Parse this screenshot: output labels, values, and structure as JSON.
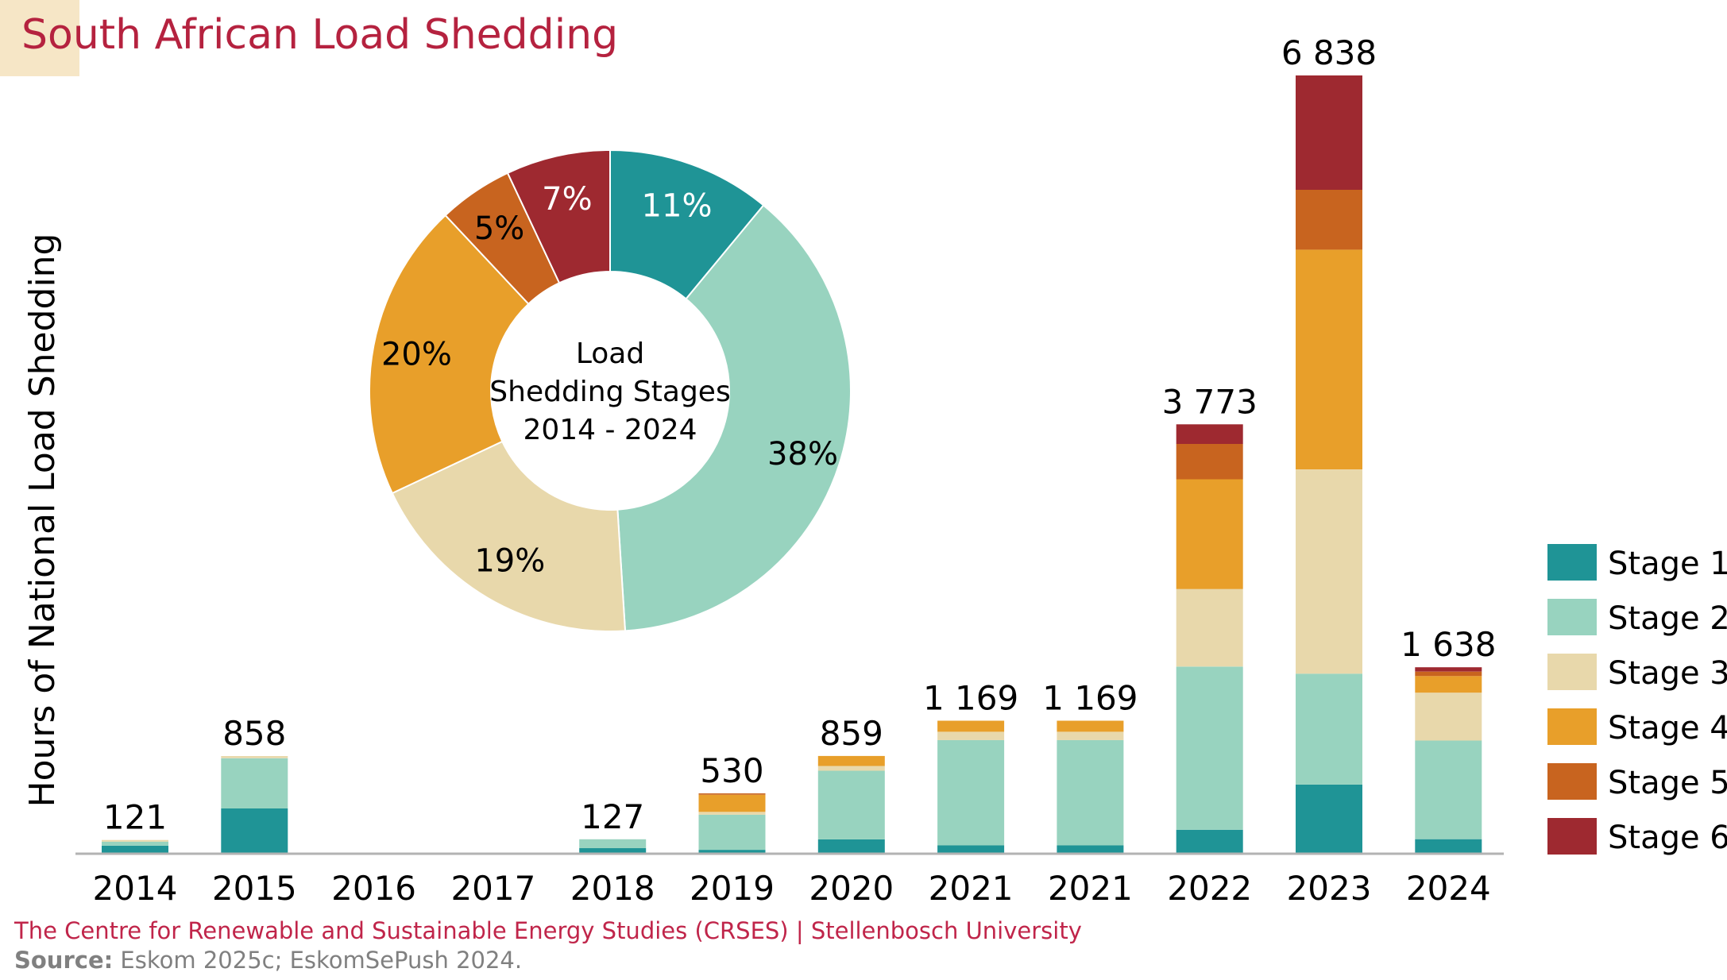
{
  "title": "South African Load Shedding",
  "footer": {
    "credit": "The Centre for Renewable and Sustainable Energy Studies (CRSES)  |  Stellenbosch University",
    "source_label": "Source:",
    "source_text": " Eskom 2025c; EskomSePush 2024."
  },
  "colors": {
    "title": "#b5223f",
    "credit": "#c0254a",
    "source": "#808080",
    "Stage 1": "#1f9496",
    "Stage 2": "#98d3bf",
    "Stage 3": "#e8d8ab",
    "Stage 4": "#e89f2a",
    "Stage 5": "#c8641f",
    "Stage 6": "#9e2930"
  },
  "chart_data": [
    {
      "type": "bar",
      "stacked": true,
      "ylabel": "Hours of National Load Shedding",
      "ylim": [
        0,
        6838
      ],
      "categories": [
        "2014",
        "2015",
        "2016",
        "2017",
        "2018",
        "2019",
        "2020",
        "2021",
        "2021",
        "2022",
        "2023",
        "2024"
      ],
      "totals": [
        121,
        858,
        0,
        0,
        127,
        530,
        859,
        1169,
        1169,
        3773,
        6838,
        1638
      ],
      "total_labels": [
        "121",
        "858",
        "",
        "",
        "127",
        "530",
        "859",
        "1 169",
        "1 169",
        "3 773",
        "6 838",
        "1 638"
      ],
      "series": [
        {
          "name": "Stage 1",
          "values": [
            71,
            398,
            0,
            0,
            49,
            34,
            126,
            73,
            73,
            211,
            608,
            128
          ]
        },
        {
          "name": "Stage 2",
          "values": [
            35,
            441,
            0,
            0,
            78,
            309,
            603,
            926,
            926,
            1433,
            974,
            866
          ]
        },
        {
          "name": "Stage 3",
          "values": [
            15,
            19,
            0,
            0,
            0,
            25,
            42,
            73,
            73,
            682,
            1794,
            421
          ]
        },
        {
          "name": "Stage 4",
          "values": [
            0,
            0,
            0,
            0,
            0,
            150,
            88,
            97,
            97,
            964,
            1931,
            146
          ]
        },
        {
          "name": "Stage 5",
          "values": [
            0,
            0,
            0,
            0,
            0,
            12,
            0,
            0,
            0,
            311,
            526,
            39
          ]
        },
        {
          "name": "Stage 6",
          "values": [
            0,
            0,
            0,
            0,
            0,
            0,
            0,
            0,
            0,
            172,
            1005,
            38
          ]
        }
      ],
      "legend": {
        "position": "right",
        "entries": [
          "Stage 1",
          "Stage 2",
          "Stage 3",
          "Stage 4",
          "Stage 5",
          "Stage 6"
        ]
      }
    },
    {
      "type": "pie",
      "donut": true,
      "center_label": [
        "Load",
        "Shedding Stages",
        "2014 - 2024"
      ],
      "labels": [
        "Stage 1",
        "Stage 2",
        "Stage 3",
        "Stage 4",
        "Stage 5",
        "Stage 6"
      ],
      "values": [
        11,
        38,
        19,
        20,
        5,
        7
      ],
      "value_labels": [
        "11%",
        "38%",
        "19%",
        "20%",
        "5%",
        "7%"
      ]
    }
  ]
}
